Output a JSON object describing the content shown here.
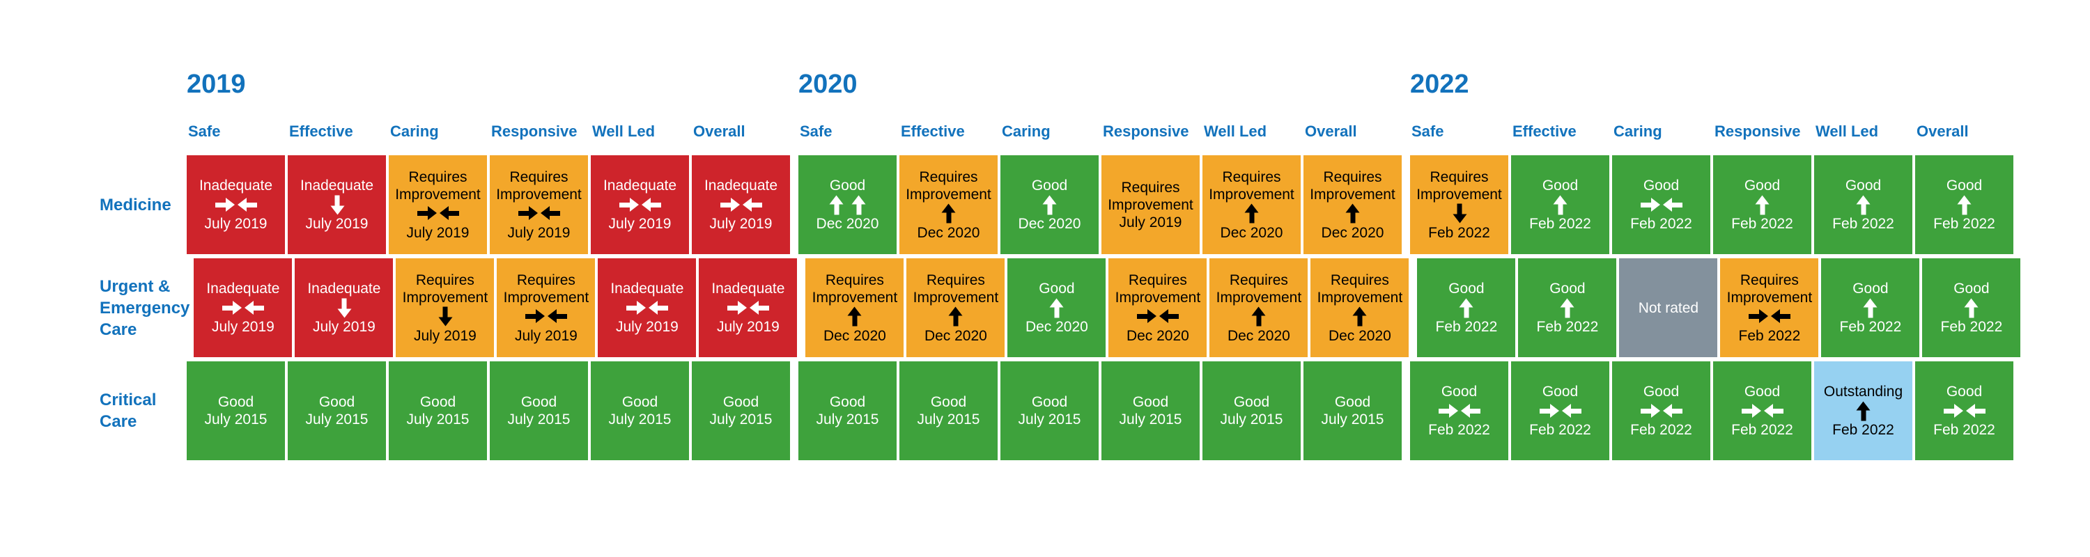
{
  "colors": {
    "heading_blue": "#1272BC",
    "inadequate": "#CE242B",
    "requires_improvement": "#F3A72A",
    "good": "#3EA23C",
    "outstanding": "#96D1F1",
    "not_rated": "#83919D",
    "text_on_dark": "#FFFFFF",
    "text_on_light": "#000000"
  },
  "chart_data": {
    "type": "table",
    "title": "",
    "legend_position": "none",
    "title_years": [
      "2019",
      "2020",
      "2022"
    ],
    "domains": [
      "Safe",
      "Effective",
      "Caring",
      "Responsive",
      "Well Led",
      "Overall"
    ],
    "trend_glyphs": {
      "same": "right-left arrows",
      "up": "up arrow",
      "up-up": "double up arrow",
      "down": "down arrow",
      "none": "no arrow"
    },
    "rows": [
      {
        "label": "Medicine",
        "years": [
          {
            "year": "2019",
            "cells": [
              {
                "rating": "Inadequate",
                "trend": "same",
                "date": "July 2019",
                "level": "inadequate"
              },
              {
                "rating": "Inadequate",
                "trend": "down",
                "date": "July 2019",
                "level": "inadequate"
              },
              {
                "rating": "Requires Improvement",
                "trend": "same",
                "date": "July 2019",
                "level": "requires"
              },
              {
                "rating": "Requires Improvement",
                "trend": "same",
                "date": "July 2019",
                "level": "requires"
              },
              {
                "rating": "Inadequate",
                "trend": "same",
                "date": "July 2019",
                "level": "inadequate"
              },
              {
                "rating": "Inadequate",
                "trend": "same",
                "date": "July 2019",
                "level": "inadequate"
              }
            ]
          },
          {
            "year": "2020",
            "cells": [
              {
                "rating": "Good",
                "trend": "up-up",
                "date": "Dec 2020",
                "level": "good"
              },
              {
                "rating": "Requires Improvement",
                "trend": "up",
                "date": "Dec 2020",
                "level": "requires"
              },
              {
                "rating": "Good",
                "trend": "up",
                "date": "Dec 2020",
                "level": "good"
              },
              {
                "rating": "Requires Improvement",
                "trend": "none",
                "date": "July 2019",
                "level": "requires"
              },
              {
                "rating": "Requires Improvement",
                "trend": "up",
                "date": "Dec 2020",
                "level": "requires"
              },
              {
                "rating": "Requires Improvement",
                "trend": "up",
                "date": "Dec 2020",
                "level": "requires"
              }
            ]
          },
          {
            "year": "2022",
            "cells": [
              {
                "rating": "Requires Improvement",
                "trend": "down",
                "date": "Feb 2022",
                "level": "requires"
              },
              {
                "rating": "Good",
                "trend": "up",
                "date": "Feb 2022",
                "level": "good"
              },
              {
                "rating": "Good",
                "trend": "same",
                "date": "Feb 2022",
                "level": "good"
              },
              {
                "rating": "Good",
                "trend": "up",
                "date": "Feb 2022",
                "level": "good"
              },
              {
                "rating": "Good",
                "trend": "up",
                "date": "Feb 2022",
                "level": "good"
              },
              {
                "rating": "Good",
                "trend": "up",
                "date": "Feb 2022",
                "level": "good"
              }
            ]
          }
        ]
      },
      {
        "label": "Urgent & Emergency Care",
        "years": [
          {
            "year": "2019",
            "cells": [
              {
                "rating": "Inadequate",
                "trend": "same",
                "date": "July 2019",
                "level": "inadequate"
              },
              {
                "rating": "Inadequate",
                "trend": "down",
                "date": "July 2019",
                "level": "inadequate"
              },
              {
                "rating": "Requires Improvement",
                "trend": "down",
                "date": "July 2019",
                "level": "requires"
              },
              {
                "rating": "Requires Improvement",
                "trend": "same",
                "date": "July 2019",
                "level": "requires"
              },
              {
                "rating": "Inadequate",
                "trend": "same",
                "date": "July 2019",
                "level": "inadequate"
              },
              {
                "rating": "Inadequate",
                "trend": "same",
                "date": "July 2019",
                "level": "inadequate"
              }
            ]
          },
          {
            "year": "2020",
            "cells": [
              {
                "rating": "Requires Improvement",
                "trend": "up",
                "date": "Dec 2020",
                "level": "requires"
              },
              {
                "rating": "Requires Improvement",
                "trend": "up",
                "date": "Dec 2020",
                "level": "requires"
              },
              {
                "rating": "Good",
                "trend": "up",
                "date": "Dec 2020",
                "level": "good"
              },
              {
                "rating": "Requires Improvement",
                "trend": "same",
                "date": "Dec 2020",
                "level": "requires"
              },
              {
                "rating": "Requires Improvement",
                "trend": "up",
                "date": "Dec 2020",
                "level": "requires"
              },
              {
                "rating": "Requires Improvement",
                "trend": "up",
                "date": "Dec 2020",
                "level": "requires"
              }
            ]
          },
          {
            "year": "2022",
            "cells": [
              {
                "rating": "Good",
                "trend": "up",
                "date": "Feb 2022",
                "level": "good"
              },
              {
                "rating": "Good",
                "trend": "up",
                "date": "Feb 2022",
                "level": "good"
              },
              {
                "rating": "Not rated",
                "trend": "none",
                "date": "",
                "level": "notrated"
              },
              {
                "rating": "Requires Improvement",
                "trend": "same",
                "date": "Feb 2022",
                "level": "requires"
              },
              {
                "rating": "Good",
                "trend": "up",
                "date": "Feb 2022",
                "level": "good"
              },
              {
                "rating": "Good",
                "trend": "up",
                "date": "Feb 2022",
                "level": "good"
              }
            ]
          }
        ]
      },
      {
        "label": "Critical Care",
        "years": [
          {
            "year": "2019",
            "cells": [
              {
                "rating": "Good",
                "trend": "none",
                "date": "July 2015",
                "level": "good"
              },
              {
                "rating": "Good",
                "trend": "none",
                "date": "July 2015",
                "level": "good"
              },
              {
                "rating": "Good",
                "trend": "none",
                "date": "July 2015",
                "level": "good"
              },
              {
                "rating": "Good",
                "trend": "none",
                "date": "July 2015",
                "level": "good"
              },
              {
                "rating": "Good",
                "trend": "none",
                "date": "July 2015",
                "level": "good"
              },
              {
                "rating": "Good",
                "trend": "none",
                "date": "July 2015",
                "level": "good"
              }
            ]
          },
          {
            "year": "2020",
            "cells": [
              {
                "rating": "Good",
                "trend": "none",
                "date": "July 2015",
                "level": "good"
              },
              {
                "rating": "Good",
                "trend": "none",
                "date": "July 2015",
                "level": "good"
              },
              {
                "rating": "Good",
                "trend": "none",
                "date": "July 2015",
                "level": "good"
              },
              {
                "rating": "Good",
                "trend": "none",
                "date": "July 2015",
                "level": "good"
              },
              {
                "rating": "Good",
                "trend": "none",
                "date": "July 2015",
                "level": "good"
              },
              {
                "rating": "Good",
                "trend": "none",
                "date": "July 2015",
                "level": "good"
              }
            ]
          },
          {
            "year": "2022",
            "cells": [
              {
                "rating": "Good",
                "trend": "same",
                "date": "Feb 2022",
                "level": "good"
              },
              {
                "rating": "Good",
                "trend": "same",
                "date": "Feb 2022",
                "level": "good"
              },
              {
                "rating": "Good",
                "trend": "same",
                "date": "Feb 2022",
                "level": "good"
              },
              {
                "rating": "Good",
                "trend": "same",
                "date": "Feb 2022",
                "level": "good"
              },
              {
                "rating": "Outstanding",
                "trend": "up",
                "date": "Feb 2022",
                "level": "outstanding"
              },
              {
                "rating": "Good",
                "trend": "same",
                "date": "Feb 2022",
                "level": "good"
              }
            ]
          }
        ]
      }
    ]
  }
}
